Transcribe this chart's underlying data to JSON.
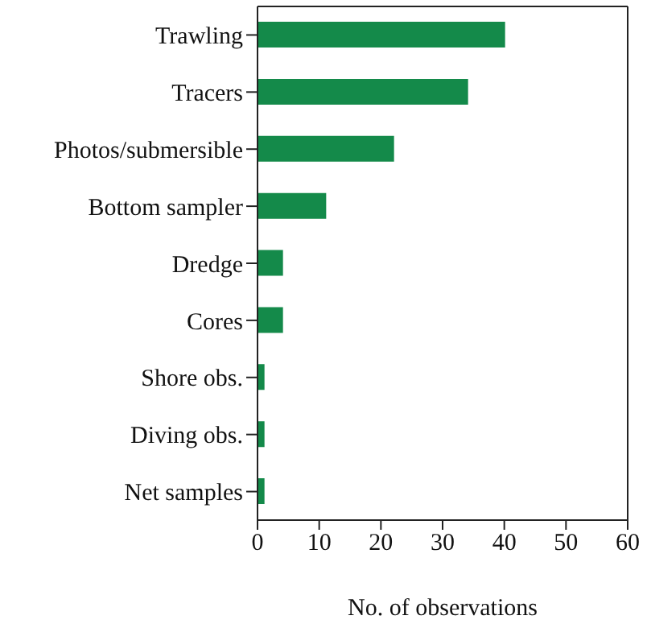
{
  "chart_data": {
    "type": "bar",
    "orientation": "horizontal",
    "xlabel": "No. of observations",
    "categories": [
      "Trawling",
      "Tracers",
      "Photos/submersible",
      "Bottom sampler",
      "Dredge",
      "Cores",
      "Shore obs.",
      "Diving obs.",
      "Net samples"
    ],
    "values": [
      40,
      34,
      22,
      11,
      4,
      4,
      1,
      1,
      1
    ],
    "color": "#148a4a",
    "xlim": [
      0,
      60
    ],
    "xticks": [
      0,
      10,
      20,
      30,
      40,
      50,
      60
    ],
    "grid": false,
    "legend": false
  }
}
